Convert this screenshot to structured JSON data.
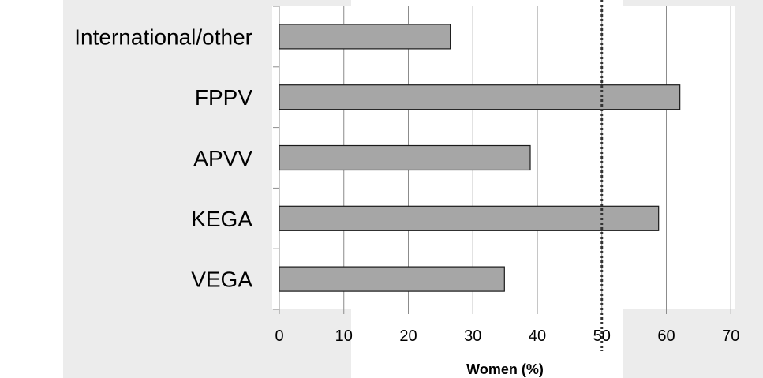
{
  "colors": {
    "background_panel": "#ececec",
    "plot_background": "#ffffff",
    "bar_fill": "#a6a6a6",
    "bar_stroke": "#1a1a1a",
    "gridline": "#8c8c8c",
    "reference_line": "#333333"
  },
  "chart_data": {
    "type": "bar",
    "orientation": "horizontal",
    "categories": [
      "International/other",
      "FPPV",
      "APVV",
      "KEGA",
      "VEGA"
    ],
    "values": [
      26.5,
      62.1,
      38.9,
      58.8,
      34.9
    ],
    "xlabel": "Women  (%)",
    "ylabel": "",
    "xlim": [
      0,
      70
    ],
    "xticks": [
      0,
      10,
      20,
      30,
      40,
      50,
      60,
      70
    ],
    "grid": "vertical",
    "reference_line": {
      "x": 50,
      "style": "dotted"
    },
    "legend": "none"
  }
}
